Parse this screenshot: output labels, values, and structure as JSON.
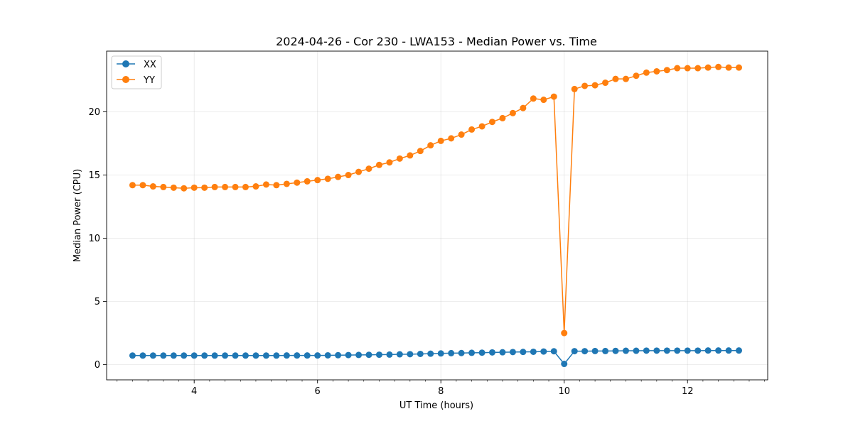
{
  "chart_data": {
    "type": "line",
    "title": "2024-04-26 - Cor 230 - LWA153 - Median Power vs. Time",
    "xlabel": "UT Time (hours)",
    "ylabel": "Median Power (CPU)",
    "xlim": [
      2.58,
      13.3
    ],
    "ylim": [
      -1.2,
      24.8
    ],
    "xticks": [
      4,
      6,
      8,
      10,
      12
    ],
    "xtick_labels": [
      "4",
      "6",
      "8",
      "10",
      "12"
    ],
    "yticks": [
      0,
      5,
      10,
      15,
      20
    ],
    "ytick_labels": [
      "0",
      "5",
      "10",
      "15",
      "20"
    ],
    "grid": true,
    "legend_position": "top-left",
    "x": [
      3.0,
      3.167,
      3.333,
      3.5,
      3.667,
      3.833,
      4.0,
      4.167,
      4.333,
      4.5,
      4.667,
      4.833,
      5.0,
      5.167,
      5.333,
      5.5,
      5.667,
      5.833,
      6.0,
      6.167,
      6.333,
      6.5,
      6.667,
      6.833,
      7.0,
      7.167,
      7.333,
      7.5,
      7.667,
      7.833,
      8.0,
      8.167,
      8.333,
      8.5,
      8.667,
      8.833,
      9.0,
      9.167,
      9.333,
      9.5,
      9.667,
      9.833,
      10.0,
      10.167,
      10.333,
      10.5,
      10.667,
      10.833,
      11.0,
      11.167,
      11.333,
      11.5,
      11.667,
      11.833,
      12.0,
      12.167,
      12.333,
      12.5,
      12.667,
      12.833
    ],
    "series": [
      {
        "name": "XX",
        "color": "#1f77b4",
        "values": [
          0.72,
          0.72,
          0.72,
          0.72,
          0.72,
          0.72,
          0.72,
          0.72,
          0.72,
          0.72,
          0.72,
          0.72,
          0.72,
          0.72,
          0.72,
          0.73,
          0.73,
          0.73,
          0.73,
          0.74,
          0.75,
          0.76,
          0.77,
          0.78,
          0.79,
          0.8,
          0.82,
          0.83,
          0.85,
          0.87,
          0.89,
          0.91,
          0.92,
          0.94,
          0.95,
          0.97,
          0.98,
          1.0,
          1.01,
          1.02,
          1.04,
          1.06,
          0.06,
          1.07,
          1.07,
          1.08,
          1.08,
          1.09,
          1.1,
          1.1,
          1.11,
          1.11,
          1.11,
          1.11,
          1.11,
          1.11,
          1.12,
          1.12,
          1.12,
          1.12
        ]
      },
      {
        "name": "YY",
        "color": "#ff7f0e",
        "values": [
          14.2,
          14.2,
          14.1,
          14.05,
          14.0,
          13.95,
          14.0,
          14.0,
          14.05,
          14.05,
          14.05,
          14.05,
          14.1,
          14.25,
          14.2,
          14.3,
          14.4,
          14.5,
          14.6,
          14.7,
          14.85,
          15.0,
          15.25,
          15.5,
          15.8,
          16.0,
          16.3,
          16.55,
          16.9,
          17.35,
          17.7,
          17.9,
          18.2,
          18.6,
          18.85,
          19.2,
          19.5,
          19.9,
          20.3,
          21.05,
          20.95,
          21.2,
          2.5,
          21.8,
          22.05,
          22.1,
          22.3,
          22.6,
          22.6,
          22.85,
          23.1,
          23.2,
          23.3,
          23.45,
          23.45,
          23.45,
          23.5,
          23.55,
          23.5,
          23.5
        ]
      }
    ]
  }
}
